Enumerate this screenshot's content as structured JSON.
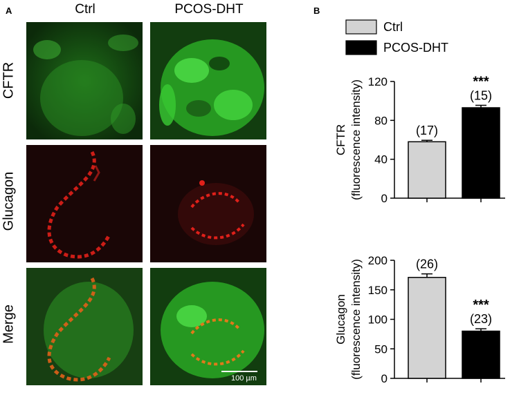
{
  "figure": {
    "panel_a_letter": "A",
    "panel_b_letter": "B",
    "columns": [
      "Ctrl",
      "PCOS-DHT"
    ],
    "rows": [
      "CFTR",
      "Glucagon",
      "Merge"
    ],
    "scale_bar_label": "100 µm"
  },
  "colors": {
    "ctrl_bar": "#d3d3d3",
    "pcos_bar": "#000000",
    "green_stain": "#2fbf2a",
    "red_stain": "#e0201a"
  },
  "legend": {
    "items": [
      {
        "label": "Ctrl",
        "color": "#d3d3d3"
      },
      {
        "label": "PCOS-DHT",
        "color": "#000000"
      }
    ]
  },
  "chart_data": [
    {
      "type": "bar",
      "categories": [
        "Ctrl",
        "PCOS-DHT"
      ],
      "values": [
        58,
        93
      ],
      "errors": [
        1.5,
        2.5
      ],
      "n_labels": [
        "(17)",
        "(15)"
      ],
      "significance": [
        "",
        "***"
      ],
      "ylabel_line1": "CFTR",
      "ylabel_line2": "(fluorescence intensity)",
      "ylim": [
        0,
        120
      ],
      "yticks": [
        0,
        40,
        80,
        120
      ]
    },
    {
      "type": "bar",
      "categories": [
        "Ctrl",
        "PCOS-DHT"
      ],
      "values": [
        171,
        80
      ],
      "errors": [
        6,
        4
      ],
      "n_labels": [
        "(26)",
        "(23)"
      ],
      "significance": [
        "",
        "***"
      ],
      "ylabel_line1": "Glucagon",
      "ylabel_line2": "(fluorescence intensity)",
      "ylim": [
        0,
        200
      ],
      "yticks": [
        0,
        50,
        100,
        150,
        200
      ]
    }
  ]
}
